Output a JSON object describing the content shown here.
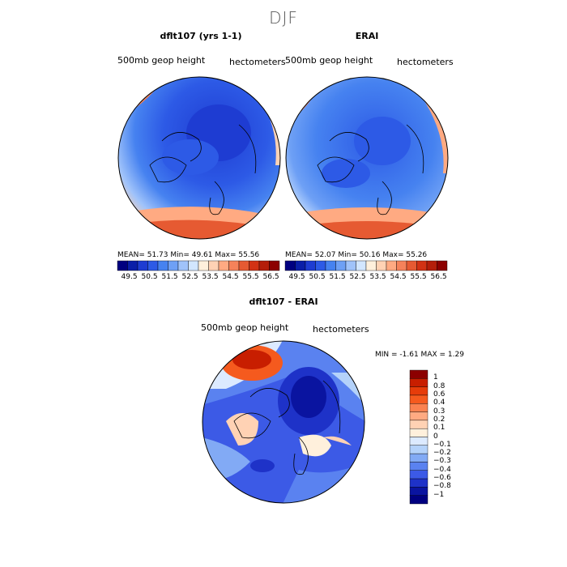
{
  "figure": {
    "season": "DJF"
  },
  "panels": [
    {
      "title": "dflt107 (yrs 1-1)",
      "field_label": "500mb geop height",
      "units": "hectometers",
      "stats": "MEAN=   51.73   Min=   49.61   Max=   55.56"
    },
    {
      "title": "ERAI",
      "field_label": "500mb geop height",
      "units": "hectometers",
      "stats": "MEAN=   52.07   Min=   50.16   Max=   55.26"
    }
  ],
  "diff_panel": {
    "title": "dflt107 - ERAI",
    "field_label": "500mb geop height",
    "units": "hectometers",
    "stats": "MIN =   -1.61  MAX =    1.29"
  },
  "colorbar_top": {
    "labels": [
      "49.5",
      "50.5",
      "51.5",
      "52.5",
      "53.5",
      "54.5",
      "55.5",
      "56.5"
    ],
    "colors": [
      "#000080",
      "#0a1ea8",
      "#1e3cd2",
      "#2d5ae6",
      "#4682f0",
      "#6ea0f5",
      "#a0c3fa",
      "#d2e6ff",
      "#fff0dc",
      "#ffd2b4",
      "#ffaa82",
      "#f5825a",
      "#e65a32",
      "#d23214",
      "#b41e0a",
      "#8c0000"
    ]
  },
  "colorbar_diff": {
    "labels": [
      "1",
      "0.8",
      "0.6",
      "0.4",
      "0.3",
      "0.2",
      "0.1",
      "0",
      "−0.1",
      "−0.2",
      "−0.3",
      "−0.4",
      "−0.6",
      "−0.8",
      "−1"
    ],
    "colors": [
      "#8c0000",
      "#c81e00",
      "#e63c0a",
      "#f55a1e",
      "#fa8250",
      "#ffaa82",
      "#ffd2b4",
      "#fff0dc",
      "#dceaff",
      "#b4d2fa",
      "#82aaf5",
      "#5a82f0",
      "#3c5ae6",
      "#1e32c8",
      "#0a14a0",
      "#000080"
    ]
  }
}
